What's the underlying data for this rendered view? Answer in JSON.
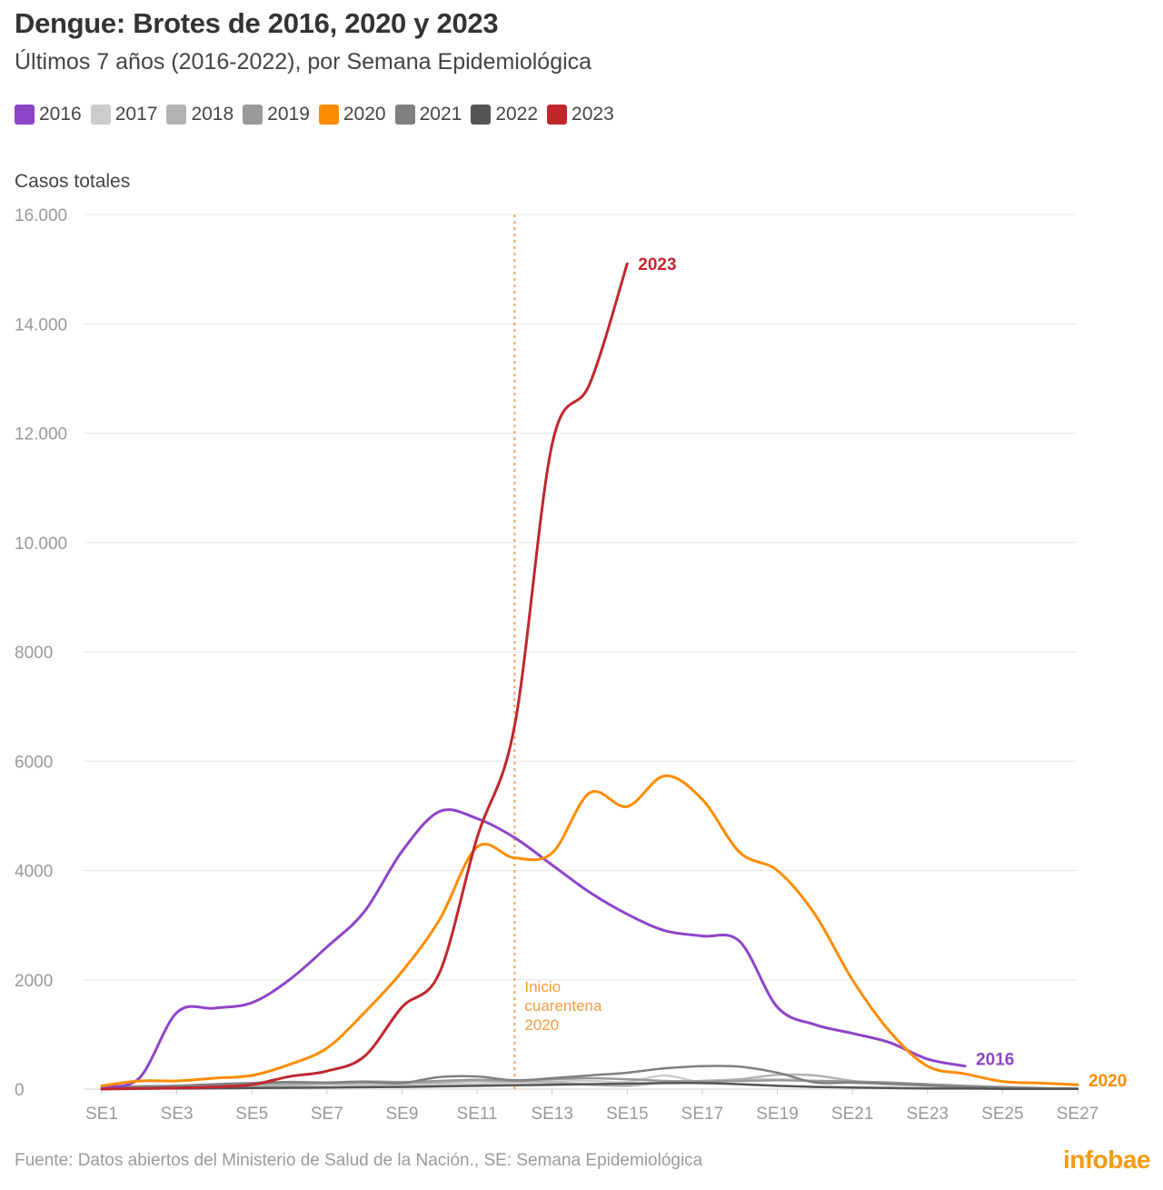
{
  "title": "Dengue: Brotes de 2016, 2020 y 2023",
  "subtitle": "Últimos 7 años (2016-2022), por Semana Epidemiológica",
  "legend": [
    {
      "label": "2016",
      "color": "#8e44c8"
    },
    {
      "label": "2017",
      "color": "#cccccc"
    },
    {
      "label": "2018",
      "color": "#b3b3b3"
    },
    {
      "label": "2019",
      "color": "#999999"
    },
    {
      "label": "2020",
      "color": "#ff8c00"
    },
    {
      "label": "2021",
      "color": "#7f7f7f"
    },
    {
      "label": "2022",
      "color": "#555555"
    },
    {
      "label": "2023",
      "color": "#c0272d"
    }
  ],
  "footer": "Fuente: Datos abiertos del Ministerio de Salud de la Nación., SE: Semana Epidemiológica",
  "brand": "infobae",
  "chart_data": {
    "type": "line",
    "ylabel": "Casos totales",
    "ylim": [
      0,
      16000
    ],
    "yticks": [
      0,
      2000,
      4000,
      6000,
      8000,
      10000,
      12000,
      14000,
      16000
    ],
    "ytick_labels": [
      "0",
      "2000",
      "4000",
      "6000",
      "8000",
      "10.000",
      "12.000",
      "14.000",
      "16.000"
    ],
    "xlim": [
      1,
      27
    ],
    "xticks": [
      1,
      3,
      5,
      7,
      9,
      11,
      13,
      15,
      17,
      19,
      21,
      23,
      25,
      27
    ],
    "xtick_labels": [
      "SE1",
      "SE3",
      "SE5",
      "SE7",
      "SE9",
      "SE11",
      "SE13",
      "SE15",
      "SE17",
      "SE19",
      "SE21",
      "SE23",
      "SE25",
      "SE27"
    ],
    "grid": true,
    "annotation": {
      "x": 12,
      "label": "Inicio cuarentena 2020",
      "color": "#f0a060"
    },
    "series": [
      {
        "name": "2017",
        "color": "#cccccc",
        "end_label": "",
        "x": [
          1,
          2,
          3,
          4,
          5,
          6,
          7,
          8,
          9,
          10,
          11,
          12,
          13,
          14,
          15,
          16,
          17,
          18,
          19,
          20,
          21,
          22,
          23,
          24
        ],
        "values": [
          10,
          15,
          20,
          30,
          40,
          60,
          80,
          70,
          60,
          80,
          100,
          120,
          140,
          150,
          130,
          250,
          120,
          160,
          180,
          150,
          110,
          80,
          50,
          30
        ]
      },
      {
        "name": "2018",
        "color": "#b3b3b3",
        "end_label": "",
        "x": [
          1,
          2,
          3,
          4,
          5,
          6,
          7,
          8,
          9,
          10,
          11,
          12,
          13,
          14,
          15,
          16,
          17,
          18,
          19,
          20,
          21,
          22,
          23,
          24
        ],
        "values": [
          10,
          20,
          30,
          40,
          60,
          70,
          90,
          110,
          100,
          120,
          150,
          140,
          120,
          80,
          60,
          120,
          150,
          180,
          260,
          250,
          150,
          100,
          60,
          30
        ]
      },
      {
        "name": "2019",
        "color": "#999999",
        "end_label": "",
        "x": [
          1,
          2,
          3,
          4,
          5,
          6,
          7,
          8,
          9,
          10,
          11,
          12,
          13,
          14,
          15,
          16,
          17,
          18,
          19,
          20,
          21,
          22,
          23,
          24,
          25,
          26,
          27
        ],
        "values": [
          20,
          40,
          60,
          80,
          100,
          110,
          120,
          140,
          130,
          150,
          170,
          160,
          180,
          200,
          180,
          150,
          140,
          150,
          160,
          150,
          140,
          120,
          90,
          60,
          40,
          20,
          10
        ]
      },
      {
        "name": "2021",
        "color": "#7f7f7f",
        "end_label": "",
        "x": [
          1,
          2,
          3,
          4,
          5,
          6,
          7,
          8,
          9,
          10,
          11,
          12,
          13,
          14,
          15,
          16,
          17,
          18,
          19,
          20,
          21,
          22,
          23,
          24,
          25,
          26,
          27
        ],
        "values": [
          30,
          50,
          60,
          90,
          110,
          130,
          120,
          130,
          110,
          220,
          230,
          160,
          200,
          250,
          300,
          380,
          420,
          410,
          300,
          120,
          120,
          100,
          70,
          40,
          20,
          10,
          5
        ]
      },
      {
        "name": "2022",
        "color": "#555555",
        "end_label": "",
        "x": [
          1,
          2,
          3,
          4,
          5,
          6,
          7,
          8,
          9,
          10,
          11,
          12,
          13,
          14,
          15,
          16,
          17,
          18,
          19,
          20,
          21,
          22,
          23,
          24,
          25,
          26,
          27
        ],
        "values": [
          5,
          10,
          10,
          15,
          20,
          25,
          30,
          35,
          40,
          50,
          60,
          70,
          80,
          90,
          100,
          110,
          110,
          90,
          60,
          40,
          30,
          20,
          10,
          10,
          5,
          5,
          5
        ]
      },
      {
        "name": "2016",
        "color": "#8e44c8",
        "end_label": "2016",
        "x": [
          1,
          2,
          3,
          4,
          5,
          6,
          7,
          8,
          9,
          10,
          11,
          12,
          13,
          14,
          15,
          16,
          17,
          18,
          19,
          20,
          21,
          22,
          23,
          24
        ],
        "values": [
          50,
          200,
          1400,
          1480,
          1580,
          2000,
          2600,
          3250,
          4350,
          5080,
          4950,
          4600,
          4100,
          3600,
          3200,
          2900,
          2800,
          2700,
          1500,
          1180,
          1020,
          850,
          550,
          420
        ]
      },
      {
        "name": "2020",
        "color": "#ff8c00",
        "end_label": "2020",
        "x": [
          1,
          2,
          3,
          4,
          5,
          6,
          7,
          8,
          9,
          10,
          11,
          12,
          13,
          14,
          15,
          16,
          17,
          18,
          19,
          20,
          21,
          22,
          23,
          24,
          25,
          26,
          27
        ],
        "values": [
          60,
          150,
          150,
          200,
          250,
          450,
          750,
          1400,
          2150,
          3100,
          4430,
          4230,
          4320,
          5420,
          5170,
          5730,
          5300,
          4330,
          4000,
          3200,
          2000,
          1050,
          420,
          280,
          140,
          110,
          80
        ]
      },
      {
        "name": "2023",
        "color": "#c0272d",
        "end_label": "2023",
        "x": [
          1,
          2,
          3,
          4,
          5,
          6,
          7,
          8,
          9,
          10,
          11,
          12,
          13,
          14,
          15
        ],
        "values": [
          0,
          10,
          20,
          40,
          80,
          230,
          330,
          600,
          1500,
          2130,
          4600,
          6650,
          11800,
          12900,
          15100
        ]
      }
    ]
  }
}
